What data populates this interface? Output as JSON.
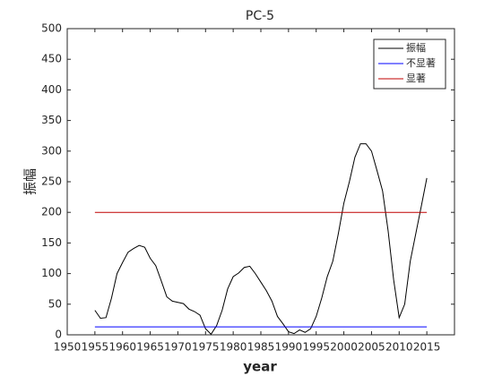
{
  "chart_data": {
    "type": "line",
    "title": "PC-5",
    "xlabel": "year",
    "ylabel": "振幅",
    "xlim": [
      1950,
      2020
    ],
    "xticks": [
      1950,
      1955,
      1960,
      1965,
      1970,
      1975,
      1980,
      1985,
      1990,
      1995,
      2000,
      2005,
      2010,
      2015
    ],
    "ylim": [
      0,
      500
    ],
    "yticks": [
      0,
      50,
      100,
      150,
      200,
      250,
      300,
      350,
      400,
      450,
      500
    ],
    "legend": "top-right",
    "series": [
      {
        "name": "振幅",
        "color": "#000000",
        "x": [
          1955,
          1956,
          1957,
          1958,
          1959,
          1960,
          1961,
          1962,
          1963,
          1964,
          1965,
          1966,
          1967,
          1968,
          1969,
          1970,
          1971,
          1972,
          1973,
          1974,
          1975,
          1976,
          1977,
          1978,
          1979,
          1980,
          1981,
          1982,
          1983,
          1984,
          1985,
          1986,
          1987,
          1988,
          1989,
          1990,
          1991,
          1992,
          1993,
          1994,
          1995,
          1996,
          1997,
          1998,
          1999,
          2000,
          2001,
          2002,
          2003,
          2004,
          2005,
          2006,
          2007,
          2008,
          2009,
          2010,
          2011,
          2012,
          2013,
          2014,
          2015
        ],
        "values": [
          40,
          27,
          28,
          60,
          100,
          118,
          135,
          141,
          146,
          143,
          125,
          113,
          88,
          62,
          55,
          53,
          51,
          42,
          38,
          32,
          10,
          1,
          15,
          40,
          75,
          95,
          101,
          110,
          112,
          100,
          86,
          72,
          55,
          30,
          18,
          5,
          2,
          8,
          4,
          10,
          30,
          60,
          95,
          120,
          165,
          215,
          250,
          290,
          312,
          312,
          300,
          268,
          235,
          170,
          90,
          28,
          50,
          120,
          165,
          210,
          256
        ]
      },
      {
        "name": "不显著",
        "color": "#0000ff",
        "x": [
          1955,
          2015
        ],
        "values": [
          13,
          13
        ]
      },
      {
        "name": "显著",
        "color": "#c00000",
        "x": [
          1955,
          2015
        ],
        "values": [
          200,
          200
        ]
      }
    ]
  }
}
